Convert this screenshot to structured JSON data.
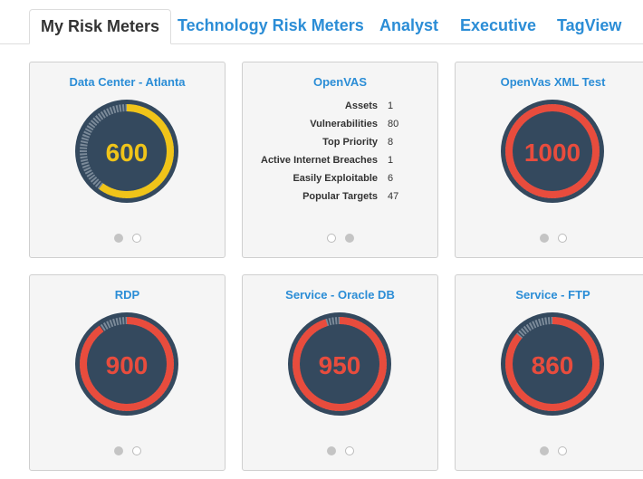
{
  "tabs": [
    {
      "label": "My Risk Meters",
      "active": true
    },
    {
      "label": "Technology Risk Meters",
      "active": false
    },
    {
      "label": "Analyst",
      "active": false
    },
    {
      "label": "Executive",
      "active": false
    },
    {
      "label": "TagView",
      "active": false
    }
  ],
  "cards": [
    {
      "title": "Data Center - Atlanta",
      "type": "gauge",
      "score": "600",
      "fraction": 0.6,
      "color": "#f0c419",
      "dots": [
        "on",
        "off"
      ]
    },
    {
      "title": "OpenVAS",
      "type": "stats",
      "stats": [
        {
          "label": "Assets",
          "value": "1"
        },
        {
          "label": "Vulnerabilities",
          "value": "80"
        },
        {
          "label": "Top Priority",
          "value": "8"
        },
        {
          "label": "Active Internet Breaches",
          "value": "1"
        },
        {
          "label": "Easily Exploitable",
          "value": "6"
        },
        {
          "label": "Popular Targets",
          "value": "47"
        }
      ],
      "dots": [
        "off",
        "on"
      ]
    },
    {
      "title": "OpenVas XML Test",
      "type": "gauge",
      "score": "1000",
      "fraction": 1.0,
      "color": "#e84c3d",
      "dots": [
        "on",
        "off"
      ]
    },
    {
      "title": "RDP",
      "type": "gauge",
      "score": "900",
      "fraction": 0.9,
      "color": "#e84c3d",
      "dots": [
        "on",
        "off"
      ]
    },
    {
      "title": "Service - Oracle DB",
      "type": "gauge",
      "score": "950",
      "fraction": 0.95,
      "color": "#e84c3d",
      "dots": [
        "on",
        "off"
      ]
    },
    {
      "title": "Service - FTP",
      "type": "gauge",
      "score": "860",
      "fraction": 0.86,
      "color": "#e84c3d",
      "dots": [
        "on",
        "off"
      ]
    }
  ],
  "colors": {
    "gauge_bg": "#34495e",
    "track": "#7b8a99",
    "link": "#2b8dd6"
  }
}
